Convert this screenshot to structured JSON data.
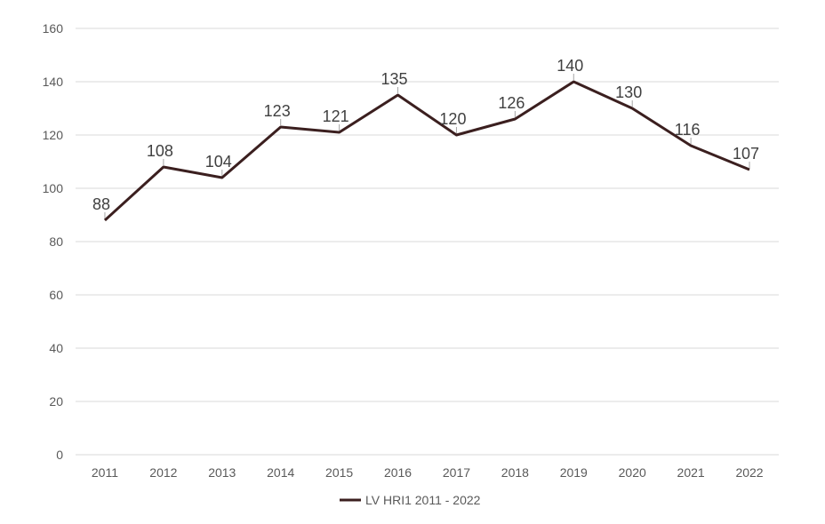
{
  "chart_data": {
    "type": "line",
    "title": "",
    "xlabel": "",
    "ylabel": "",
    "x": [
      "2011",
      "2012",
      "2013",
      "2014",
      "2015",
      "2016",
      "2017",
      "2018",
      "2019",
      "2020",
      "2021",
      "2022"
    ],
    "series": [
      {
        "name": "LV HRI1 2011 - 2022",
        "values": [
          88,
          108,
          104,
          123,
          121,
          135,
          120,
          126,
          140,
          130,
          116,
          107
        ]
      }
    ],
    "ylim": [
      0,
      160
    ],
    "yticks": [
      0,
      20,
      40,
      60,
      80,
      100,
      120,
      140,
      160
    ],
    "grid": true,
    "legend": "bottom-center",
    "data_labels": true,
    "line_color": "#3b1f1f",
    "grid_color": "#d9d9d9"
  }
}
